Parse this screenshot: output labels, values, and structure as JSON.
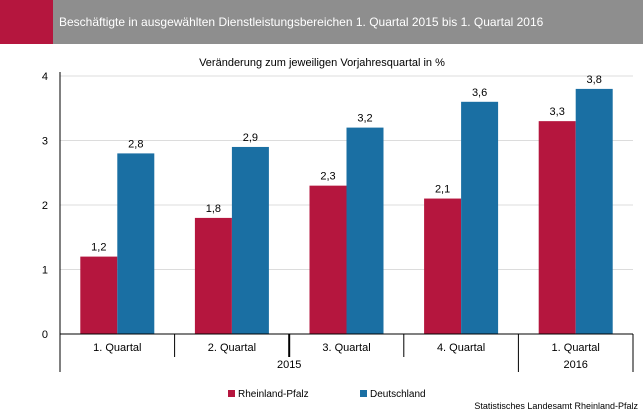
{
  "header": {
    "title": "Beschäftigte in ausgewählten Dienstleistungsbereichen 1. Quartal 2015 bis 1. Quartal 2016"
  },
  "colors": {
    "header_bg": "#8e8e8e",
    "accent": "#b5163e"
  },
  "chart_data": {
    "type": "bar",
    "title": "Veränderung zum jeweiligen Vorjahresquartal in %",
    "categories": [
      "1. Quartal",
      "2. Quartal",
      "3. Quartal",
      "4. Quartal",
      "1. Quartal"
    ],
    "groups": [
      {
        "label": "2015",
        "span": [
          0,
          3
        ]
      },
      {
        "label": "2016",
        "span": [
          4,
          4
        ]
      }
    ],
    "series": [
      {
        "name": "Rheinland-Pfalz",
        "color": "#b5163e",
        "values": [
          1.2,
          1.8,
          2.3,
          2.1,
          3.3
        ],
        "labels": [
          "1,2",
          "1,8",
          "2,3",
          "2,1",
          "3,3"
        ]
      },
      {
        "name": "Deutschland",
        "color": "#1a6fa3",
        "values": [
          2.8,
          2.9,
          3.2,
          3.6,
          3.8
        ],
        "labels": [
          "2,8",
          "2,9",
          "3,2",
          "3,6",
          "3,8"
        ]
      }
    ],
    "yticks": [
      "0",
      "1",
      "2",
      "3",
      "4"
    ],
    "ylim": [
      0,
      4
    ],
    "grid": true,
    "legend_position": "bottom"
  },
  "source": "Statistisches Landesamt Rheinland-Pfalz"
}
